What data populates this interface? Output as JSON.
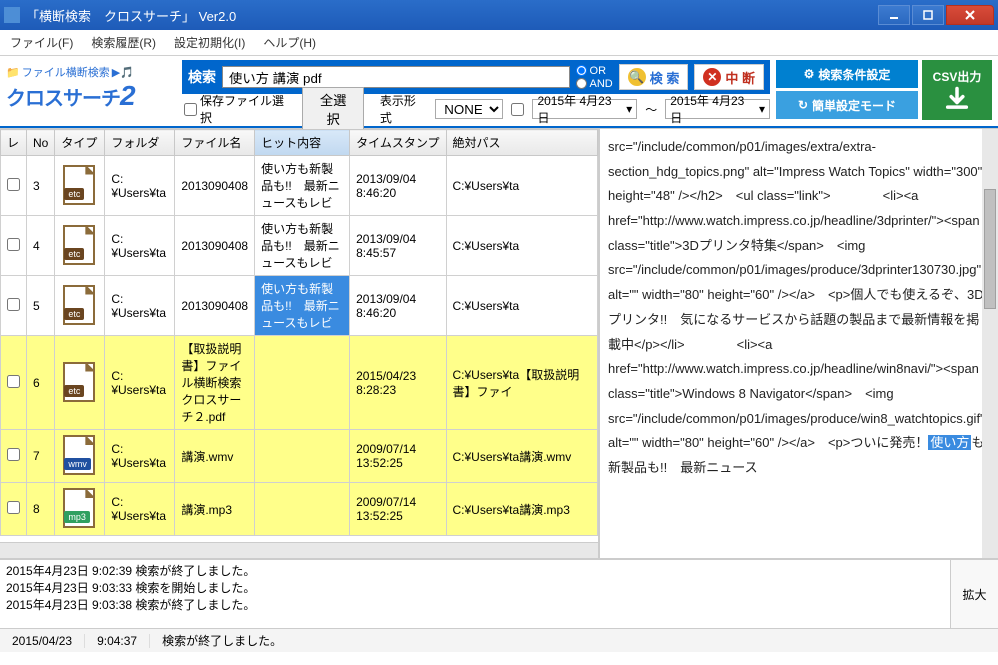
{
  "window": {
    "title": "「横断検索　クロスサーチ」 Ver2.0"
  },
  "menu": {
    "file": "ファイル(F)",
    "history": "検索履歴(R)",
    "reset": "設定初期化(I)",
    "help": "ヘルプ(H)"
  },
  "logo": {
    "small": "ファイル横断検索",
    "big1": "クロスサーチ",
    "big2": "2"
  },
  "search": {
    "label": "検索",
    "query": "使い方 講演 pdf",
    "or": "OR",
    "and": "AND",
    "btn_search": "検 索",
    "btn_stop": "中 断",
    "chk_save": "保存ファイル選択",
    "btn_selectall": "全選択",
    "lbl_display": "表示形式",
    "display_value": "NONE",
    "date_from": "2015年 4月23日",
    "tilde": "～",
    "date_to": "2015年 4月23日"
  },
  "rightbtn": {
    "cond": "検索条件設定",
    "simple": "簡単設定モード",
    "csv": "CSV出力"
  },
  "table": {
    "headers": {
      "lv": "レ",
      "no": "No",
      "type": "タイプ",
      "folder": "フォルダ",
      "filename": "ファイル名",
      "hit": "ヒット内容",
      "ts": "タイムスタンプ",
      "path": "絶対パス"
    },
    "rows": [
      {
        "no": "3",
        "type": "etc",
        "folder": "C:¥Users¥ta",
        "filename": "2013090408",
        "hit": "使い方も新製品も!!　最新ニュースもレビ",
        "ts": "2013/09/04 8:46:20",
        "path": "C:¥Users¥ta",
        "tall": true
      },
      {
        "no": "4",
        "type": "etc",
        "folder": "C:¥Users¥ta",
        "filename": "2013090408",
        "hit": "使い方も新製品も!!　最新ニュースもレビ",
        "ts": "2013/09/04 8:45:57",
        "path": "C:¥Users¥ta",
        "tall": true
      },
      {
        "no": "5",
        "type": "etc",
        "folder": "C:¥Users¥ta",
        "filename": "2013090408",
        "hit": "使い方も新製品も!!　最新ニュースもレビ",
        "ts": "2013/09/04 8:46:20",
        "path": "C:¥Users¥ta",
        "tall": true,
        "hitsel": true
      },
      {
        "no": "6",
        "type": "etc",
        "folder": "C:¥Users¥ta",
        "filename": "【取扱説明書】ファイル横断検索クロスサーチ２.pdf",
        "hit": "",
        "ts": "2015/04/23 8:28:23",
        "path": "C:¥Users¥ta【取扱説明書】ファイ",
        "tall": true,
        "yellow": true
      },
      {
        "no": "7",
        "type": "wmv",
        "folder": "C:¥Users¥ta",
        "filename": "講演.wmv",
        "hit": "",
        "ts": "2009/07/14 13:52:25",
        "path": "C:¥Users¥ta講演.wmv",
        "yellow": true
      },
      {
        "no": "8",
        "type": "mp3",
        "folder": "C:¥Users¥ta",
        "filename": "講演.mp3",
        "hit": "",
        "ts": "2009/07/14 13:52:25",
        "path": "C:¥Users¥ta講演.mp3",
        "yellow": true
      }
    ]
  },
  "preview": {
    "html": "src=\"/include/common/p01/images/extra/extra-section_hdg_topics.png\" alt=\"Impress Watch Topics\" width=\"300\" height=\"48\" /&gt;&lt;/h2&gt;　&lt;ul class=\"link\"&gt;　　　　&lt;li&gt;&lt;a href=\"http://www.watch.impress.co.jp/headline/3dprinter/\"&gt;&lt;span class=\"title\"&gt;3Dプリンタ特集&lt;/span&gt;　&lt;img src=\"/include/common/p01/images/produce/3dprinter130730.jpg\" alt=\"\" width=\"80\" height=\"60\" /&gt;&lt;/a&gt;　&lt;p&gt;個人でも使えるぞ、3Dプリンタ!!　気になるサービスから話題の製品まで最新情報を掲載中&lt;/p&gt;&lt;/li&gt;　　　　&lt;li&gt;&lt;a href=\"http://www.watch.impress.co.jp/headline/win8navi/\"&gt;&lt;span class=\"title\"&gt;Windows 8 Navigator&lt;/span&gt;　&lt;img src=\"/include/common/p01/images/produce/win8_watchtopics.gif\" alt=\"\" width=\"80\" height=\"60\" /&gt;&lt;/a&gt;　&lt;p&gt;ついに発売！<span class=\"hl\">使い方</span>も新製品も!!　最新ニュース"
  },
  "log": {
    "lines": [
      "2015年4月23日 9:02:39 検索が終了しました。",
      "2015年4月23日 9:03:33 検索を開始しました。",
      "2015年4月23日 9:03:38 検索が終了しました。"
    ],
    "expand": "拡大"
  },
  "status": {
    "date": "2015/04/23",
    "time": "9:04:37",
    "msg": "検索が終了しました。"
  },
  "colors": {
    "accent": "#0066cc",
    "hl": "#3a8be0",
    "yellow": "#ffff8a"
  }
}
